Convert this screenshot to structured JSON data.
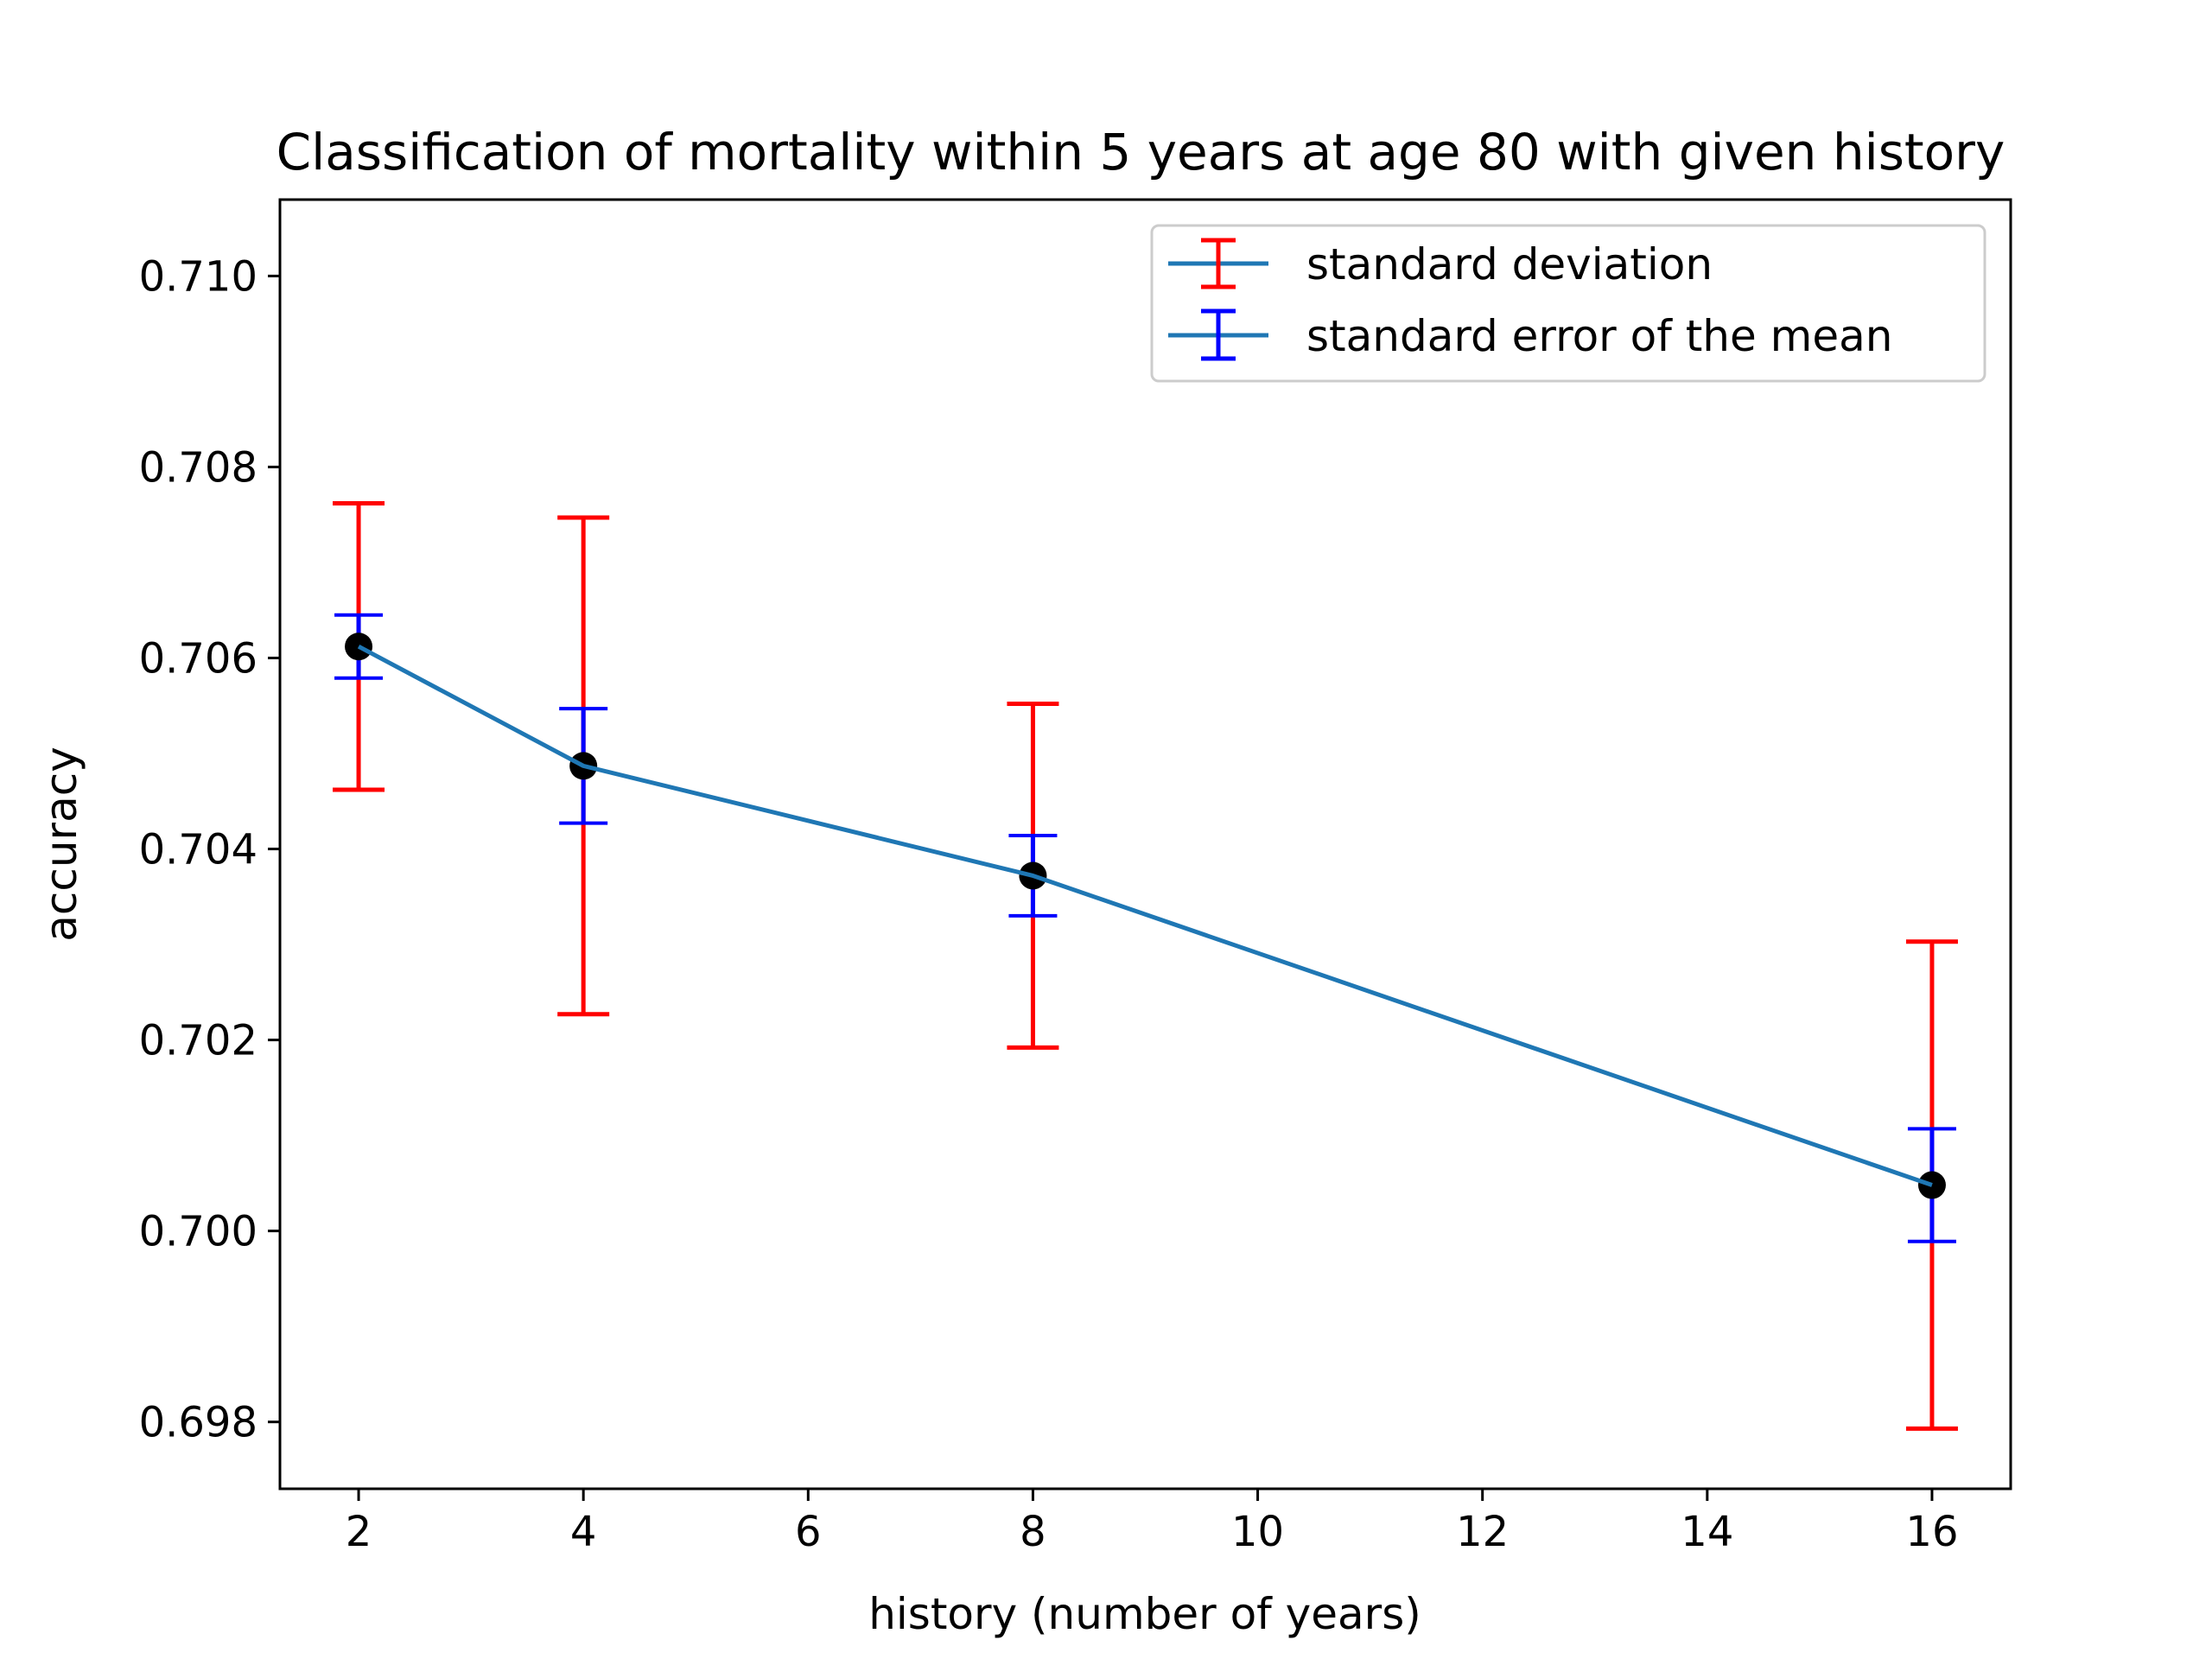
{
  "chart_data": {
    "type": "line",
    "title": "Classification of mortality within 5 years at age 80 with given history",
    "xlabel": "history (number of years)",
    "ylabel": "accuracy",
    "xlim": [
      1.3,
      16.7
    ],
    "ylim": [
      0.6973,
      0.7108
    ],
    "xticks": [
      2,
      4,
      6,
      8,
      10,
      12,
      14,
      16
    ],
    "yticks": [
      0.698,
      0.7,
      0.702,
      0.704,
      0.706,
      0.708,
      0.71
    ],
    "ytick_labels": [
      "0.698",
      "0.700",
      "0.702",
      "0.704",
      "0.706",
      "0.708",
      "0.710"
    ],
    "x": [
      2,
      4,
      8,
      16
    ],
    "mean": [
      0.70612,
      0.70487,
      0.70372,
      0.70048
    ],
    "std": [
      0.0015,
      0.0026,
      0.0018,
      0.00255
    ],
    "sem": [
      0.00033,
      0.0006,
      0.00042,
      0.00059
    ],
    "colors": {
      "line": "#1f77b4",
      "std": "#ff0000",
      "sem": "#0000ff",
      "marker": "#000000"
    },
    "legend": {
      "position": "upper-right",
      "entries": [
        "standard deviation",
        "standard error of the mean"
      ]
    }
  }
}
